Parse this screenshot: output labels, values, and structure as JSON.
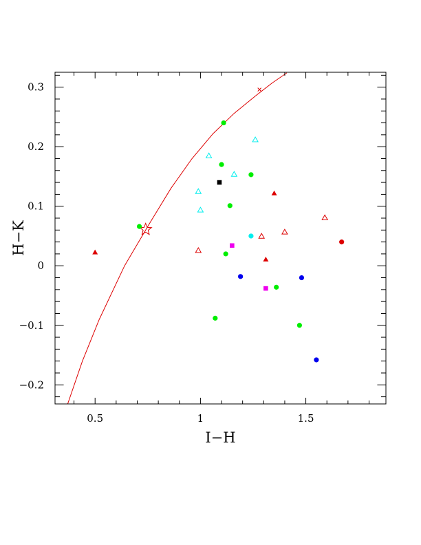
{
  "chart_data": {
    "type": "scatter",
    "xlabel": "I−H",
    "ylabel": "H−K",
    "xlim": [
      0.31,
      1.88
    ],
    "ylim": [
      -0.232,
      0.325
    ],
    "xticks": [
      {
        "value": 0.5,
        "label": "0.5"
      },
      {
        "value": 1.0,
        "label": "1"
      },
      {
        "value": 1.5,
        "label": "1.5"
      }
    ],
    "yticks": [
      {
        "value": -0.2,
        "label": "−0.2"
      },
      {
        "value": -0.1,
        "label": "−0.1"
      },
      {
        "value": 0.0,
        "label": "0"
      },
      {
        "value": 0.1,
        "label": "0.1"
      },
      {
        "value": 0.2,
        "label": "0.2"
      },
      {
        "value": 0.3,
        "label": "0.3"
      }
    ],
    "x_minor_step": 0.1,
    "y_minor_step": 0.02,
    "grid": false,
    "colors": {
      "curve": "#dd0000",
      "red": "#dd0000",
      "green": "#00ee00",
      "cyan": "#00eeee",
      "blue": "#0000ee",
      "magenta": "#ee00ee",
      "black": "#000000"
    },
    "curve": {
      "x": [
        0.37,
        0.44,
        0.52,
        0.64,
        0.76,
        0.86,
        0.96,
        1.06,
        1.16,
        1.26,
        1.34,
        1.41
      ],
      "y": [
        -0.232,
        -0.16,
        -0.09,
        0.0,
        0.072,
        0.13,
        0.18,
        0.222,
        0.256,
        0.285,
        0.307,
        0.324
      ]
    },
    "star": {
      "x": 0.74,
      "y": 0.061
    },
    "series": [
      {
        "marker": "circle",
        "color": "green",
        "points": [
          [
            1.11,
            0.24
          ],
          [
            1.1,
            0.17
          ],
          [
            1.24,
            0.153
          ],
          [
            1.14,
            0.101
          ],
          [
            0.71,
            0.066
          ],
          [
            1.12,
            0.02
          ],
          [
            1.36,
            -0.036
          ],
          [
            1.07,
            -0.088
          ],
          [
            1.47,
            -0.1
          ]
        ]
      },
      {
        "marker": "circle",
        "color": "blue",
        "points": [
          [
            1.19,
            -0.018
          ],
          [
            1.48,
            -0.02
          ],
          [
            1.55,
            -0.158
          ]
        ]
      },
      {
        "marker": "circle",
        "color": "red",
        "points": [
          [
            1.67,
            0.04
          ]
        ]
      },
      {
        "marker": "circle",
        "color": "cyan",
        "points": [
          [
            1.24,
            0.05
          ]
        ]
      },
      {
        "marker": "triangle-open",
        "color": "cyan",
        "points": [
          [
            1.26,
            0.211
          ],
          [
            1.04,
            0.184
          ],
          [
            1.16,
            0.153
          ],
          [
            0.99,
            0.124
          ],
          [
            1.0,
            0.093
          ]
        ]
      },
      {
        "marker": "triangle-filled",
        "color": "red",
        "points": [
          [
            1.35,
            0.121
          ],
          [
            0.5,
            0.022
          ],
          [
            1.31,
            0.01
          ]
        ]
      },
      {
        "marker": "triangle-open",
        "color": "red",
        "points": [
          [
            1.59,
            0.08
          ],
          [
            1.4,
            0.056
          ],
          [
            1.29,
            0.049
          ],
          [
            0.99,
            0.025
          ]
        ]
      },
      {
        "marker": "square",
        "color": "black",
        "points": [
          [
            1.09,
            0.14
          ]
        ]
      },
      {
        "marker": "square",
        "color": "magenta",
        "points": [
          [
            1.15,
            0.034
          ],
          [
            1.31,
            -0.038
          ]
        ]
      },
      {
        "marker": "cross",
        "color": "red",
        "points": [
          [
            1.28,
            0.296
          ]
        ]
      }
    ]
  }
}
